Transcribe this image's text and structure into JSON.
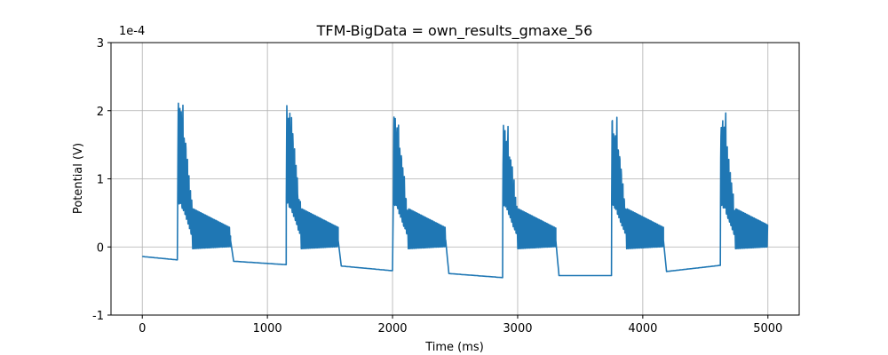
{
  "chart_data": {
    "type": "line",
    "title": "TFM-BigData = own_results_gmaxe_56",
    "xlabel": "Time (ms)",
    "ylabel": "Potential (V)",
    "y_offset_text": "1e-4",
    "xlim": [
      -250,
      5250
    ],
    "ylim": [
      -1,
      3
    ],
    "xticks": [
      0,
      1000,
      2000,
      3000,
      4000,
      5000
    ],
    "yticks": [
      -1,
      0,
      1,
      2,
      3
    ],
    "grid": true,
    "series_color": "#1f77b4",
    "beats": [
      {
        "start": 0,
        "pre_start": -0.14,
        "spike_t": 282,
        "pre_level": -0.19,
        "peak": 2.28,
        "tail_end": 730,
        "tail_level": -0.21
      },
      {
        "start": 730,
        "pre_start": -0.21,
        "spike_t": 1150,
        "pre_level": -0.26,
        "peak": 2.2,
        "tail_end": 1590,
        "tail_level": -0.28
      },
      {
        "start": 1590,
        "pre_start": -0.28,
        "spike_t": 2005,
        "pre_level": -0.35,
        "peak": 2.07,
        "tail_end": 2450,
        "tail_level": -0.39
      },
      {
        "start": 2450,
        "pre_start": -0.39,
        "spike_t": 2880,
        "pre_level": -0.45,
        "peak": 2.0,
        "tail_end": 3330,
        "tail_level": -0.42
      },
      {
        "start": 3330,
        "pre_start": -0.42,
        "spike_t": 3750,
        "pre_level": -0.42,
        "peak": 2.02,
        "tail_end": 4190,
        "tail_level": -0.36
      },
      {
        "start": 4190,
        "pre_start": -0.36,
        "spike_t": 4620,
        "pre_level": -0.27,
        "peak": 2.07,
        "tail_end": 5000,
        "tail_level": 0.25
      }
    ]
  }
}
